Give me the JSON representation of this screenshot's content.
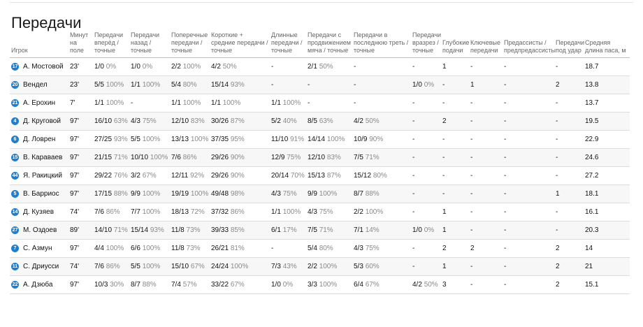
{
  "title": "Передачи",
  "colors": {
    "badge": "#1e7fd2"
  },
  "headers": {
    "player": "Игрок",
    "minutes": "Минут на поле",
    "forward": "Передачи вперёд / точные",
    "back": "Передачи назад / точные",
    "lateral": "Поперечные передачи / точные",
    "short": "Короткие + средние передачи / точные",
    "long": "Длинные передачи / точные",
    "advance": "Передачи с продвижением мяча / точные",
    "final_third": "Передачи в последнюю треть / точные",
    "through": "Передачи вразрез / точные",
    "deep": "Глубокие подачи",
    "key": "Ключевые передачи",
    "preassist": "Предассисты / предпредассисты",
    "shot": "Передачи под удар",
    "avg_len": "Средняя длина паса, м"
  },
  "rows": [
    {
      "num": "17",
      "name": "А. Мостовой",
      "min": "23'",
      "fwd": "1/0",
      "fwd_p": "0%",
      "back": "1/0",
      "back_p": "0%",
      "lat": "2/2",
      "lat_p": "100%",
      "short": "4/2",
      "short_p": "50%",
      "long": "-",
      "long_p": "",
      "adv": "2/1",
      "adv_p": "50%",
      "fin": "-",
      "fin_p": "",
      "thr": "-",
      "thr_p": "",
      "deep": "1",
      "key": "-",
      "pre": "-",
      "shot": "-",
      "avg": "18.7"
    },
    {
      "num": "20",
      "name": "Вендел",
      "min": "23'",
      "fwd": "5/5",
      "fwd_p": "100%",
      "back": "1/1",
      "back_p": "100%",
      "lat": "5/4",
      "lat_p": "80%",
      "short": "15/14",
      "short_p": "93%",
      "long": "-",
      "long_p": "",
      "adv": "-",
      "adv_p": "",
      "fin": "-",
      "fin_p": "",
      "thr": "1/0",
      "thr_p": "0%",
      "deep": "-",
      "key": "1",
      "pre": "-",
      "shot": "2",
      "avg": "13.8"
    },
    {
      "num": "21",
      "name": "А. Ерохин",
      "min": "7'",
      "fwd": "1/1",
      "fwd_p": "100%",
      "back": "-",
      "back_p": "",
      "lat": "1/1",
      "lat_p": "100%",
      "short": "1/1",
      "short_p": "100%",
      "long": "1/1",
      "long_p": "100%",
      "adv": "-",
      "adv_p": "",
      "fin": "-",
      "fin_p": "",
      "thr": "-",
      "thr_p": "",
      "deep": "-",
      "key": "-",
      "pre": "-",
      "shot": "-",
      "avg": "13.7"
    },
    {
      "num": "4",
      "name": "Д. Круговой",
      "min": "97'",
      "fwd": "16/10",
      "fwd_p": "63%",
      "back": "4/3",
      "back_p": "75%",
      "lat": "12/10",
      "lat_p": "83%",
      "short": "30/26",
      "short_p": "87%",
      "long": "5/2",
      "long_p": "40%",
      "adv": "8/5",
      "adv_p": "63%",
      "fin": "4/2",
      "fin_p": "50%",
      "thr": "-",
      "thr_p": "",
      "deep": "2",
      "key": "-",
      "pre": "-",
      "shot": "-",
      "avg": "19.5"
    },
    {
      "num": "6",
      "name": "Д. Ловрен",
      "min": "97'",
      "fwd": "27/25",
      "fwd_p": "93%",
      "back": "5/5",
      "back_p": "100%",
      "lat": "13/13",
      "lat_p": "100%",
      "short": "37/35",
      "short_p": "95%",
      "long": "11/10",
      "long_p": "91%",
      "adv": "14/14",
      "adv_p": "100%",
      "fin": "10/9",
      "fin_p": "90%",
      "thr": "-",
      "thr_p": "",
      "deep": "-",
      "key": "-",
      "pre": "-",
      "shot": "-",
      "avg": "22.9"
    },
    {
      "num": "15",
      "name": "В. Караваев",
      "min": "97'",
      "fwd": "21/15",
      "fwd_p": "71%",
      "back": "10/10",
      "back_p": "100%",
      "lat": "7/6",
      "lat_p": "86%",
      "short": "29/26",
      "short_p": "90%",
      "long": "12/9",
      "long_p": "75%",
      "adv": "12/10",
      "adv_p": "83%",
      "fin": "7/5",
      "fin_p": "71%",
      "thr": "-",
      "thr_p": "",
      "deep": "-",
      "key": "-",
      "pre": "-",
      "shot": "-",
      "avg": "24.6"
    },
    {
      "num": "44",
      "name": "Я. Ракицкий",
      "min": "97'",
      "fwd": "29/22",
      "fwd_p": "76%",
      "back": "3/2",
      "back_p": "67%",
      "lat": "12/11",
      "lat_p": "92%",
      "short": "29/26",
      "short_p": "90%",
      "long": "20/14",
      "long_p": "70%",
      "adv": "15/13",
      "adv_p": "87%",
      "fin": "15/12",
      "fin_p": "80%",
      "thr": "-",
      "thr_p": "",
      "deep": "-",
      "key": "-",
      "pre": "-",
      "shot": "-",
      "avg": "27.2"
    },
    {
      "num": "5",
      "name": "В. Барриос",
      "min": "97'",
      "fwd": "17/15",
      "fwd_p": "88%",
      "back": "9/9",
      "back_p": "100%",
      "lat": "19/19",
      "lat_p": "100%",
      "short": "49/48",
      "short_p": "98%",
      "long": "4/3",
      "long_p": "75%",
      "adv": "9/9",
      "adv_p": "100%",
      "fin": "8/7",
      "fin_p": "88%",
      "thr": "-",
      "thr_p": "",
      "deep": "-",
      "key": "-",
      "pre": "-",
      "shot": "1",
      "avg": "18.1"
    },
    {
      "num": "14",
      "name": "Д. Кузяев",
      "min": "74'",
      "fwd": "7/6",
      "fwd_p": "86%",
      "back": "7/7",
      "back_p": "100%",
      "lat": "18/13",
      "lat_p": "72%",
      "short": "37/32",
      "short_p": "86%",
      "long": "1/1",
      "long_p": "100%",
      "adv": "4/3",
      "adv_p": "75%",
      "fin": "2/2",
      "fin_p": "100%",
      "thr": "-",
      "thr_p": "",
      "deep": "1",
      "key": "-",
      "pre": "-",
      "shot": "-",
      "avg": "16.1"
    },
    {
      "num": "27",
      "name": "М. Оздоев",
      "min": "89'",
      "fwd": "14/10",
      "fwd_p": "71%",
      "back": "15/14",
      "back_p": "93%",
      "lat": "11/8",
      "lat_p": "73%",
      "short": "39/33",
      "short_p": "85%",
      "long": "6/1",
      "long_p": "17%",
      "adv": "7/5",
      "adv_p": "71%",
      "fin": "7/1",
      "fin_p": "14%",
      "thr": "1/0",
      "thr_p": "0%",
      "deep": "1",
      "key": "-",
      "pre": "-",
      "shot": "-",
      "avg": "20.3"
    },
    {
      "num": "7",
      "name": "С. Азмун",
      "min": "97'",
      "fwd": "4/4",
      "fwd_p": "100%",
      "back": "6/6",
      "back_p": "100%",
      "lat": "11/8",
      "lat_p": "73%",
      "short": "26/21",
      "short_p": "81%",
      "long": "-",
      "long_p": "",
      "adv": "5/4",
      "adv_p": "80%",
      "fin": "4/3",
      "fin_p": "75%",
      "thr": "-",
      "thr_p": "",
      "deep": "2",
      "key": "2",
      "pre": "-",
      "shot": "2",
      "avg": "14"
    },
    {
      "num": "11",
      "name": "С. Дриусси",
      "min": "74'",
      "fwd": "7/6",
      "fwd_p": "86%",
      "back": "5/5",
      "back_p": "100%",
      "lat": "15/10",
      "lat_p": "67%",
      "short": "24/24",
      "short_p": "100%",
      "long": "7/3",
      "long_p": "43%",
      "adv": "2/2",
      "adv_p": "100%",
      "fin": "5/3",
      "fin_p": "60%",
      "thr": "-",
      "thr_p": "",
      "deep": "1",
      "key": "-",
      "pre": "-",
      "shot": "2",
      "avg": "21"
    },
    {
      "num": "22",
      "name": "А. Дзюба",
      "min": "97'",
      "fwd": "10/3",
      "fwd_p": "30%",
      "back": "8/7",
      "back_p": "88%",
      "lat": "7/4",
      "lat_p": "57%",
      "short": "33/22",
      "short_p": "67%",
      "long": "1/0",
      "long_p": "0%",
      "adv": "3/3",
      "adv_p": "100%",
      "fin": "6/4",
      "fin_p": "67%",
      "thr": "4/2",
      "thr_p": "50%",
      "deep": "3",
      "key": "-",
      "pre": "-",
      "shot": "2",
      "avg": "15.1"
    }
  ]
}
